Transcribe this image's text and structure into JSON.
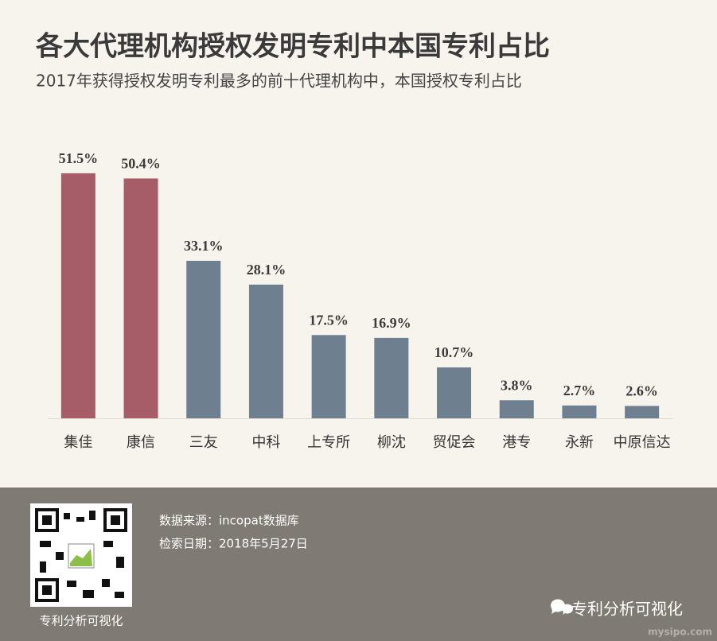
{
  "chart_data": {
    "type": "bar",
    "title": "各大代理机构授权发明专利中本国专利占比",
    "subtitle": "2017年获得授权发明专利最多的前十代理机构中，本国授权专利占比",
    "categories": [
      "集佳",
      "康信",
      "三友",
      "中科",
      "上专所",
      "柳沈",
      "贸促会",
      "港专",
      "永新",
      "中原信达"
    ],
    "values": [
      51.5,
      50.4,
      33.1,
      28.1,
      17.5,
      16.9,
      10.7,
      3.8,
      2.7,
      2.6
    ],
    "value_labels": [
      "51.5%",
      "50.4%",
      "33.1%",
      "28.1%",
      "17.5%",
      "16.9%",
      "10.7%",
      "3.8%",
      "2.7%",
      "2.6%"
    ],
    "colors": [
      "#a65d67",
      "#a65d67",
      "#6e7f8f",
      "#6e7f8f",
      "#6e7f8f",
      "#6e7f8f",
      "#6e7f8f",
      "#6e7f8f",
      "#6e7f8f",
      "#6e7f8f"
    ],
    "ylim": [
      0,
      60
    ],
    "grid": false
  },
  "footer": {
    "source": "数据来源：incopat数据库",
    "date": "检索日期：2018年5月27日",
    "qr_caption": "专利分析可视化",
    "account": "专利分析可视化",
    "watermark": "mysipo.com"
  }
}
